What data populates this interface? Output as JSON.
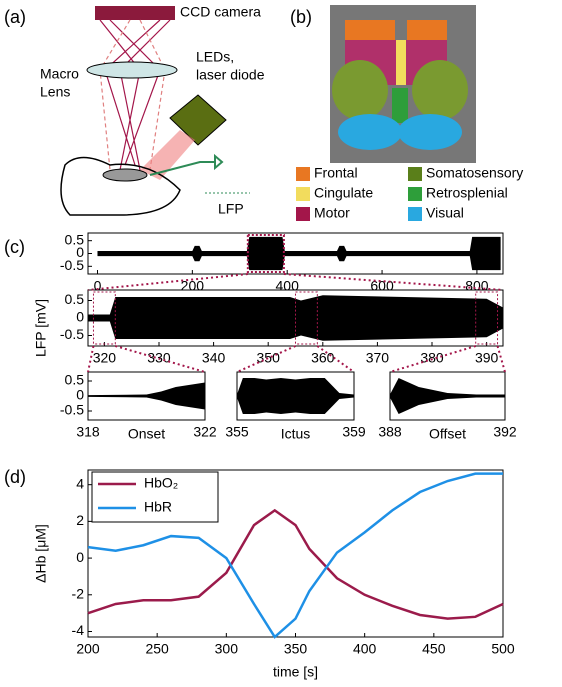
{
  "panel_labels": [
    "(a)",
    "(b)",
    "(c)",
    "(d)"
  ],
  "setup": {
    "camera": "CCD camera",
    "lens": [
      "Macro",
      "Lens"
    ],
    "light": [
      "LEDs,",
      "laser diode"
    ],
    "probe": "LFP"
  },
  "regions": [
    {
      "name": "Frontal",
      "color": "#e87722"
    },
    {
      "name": "Somatosensory",
      "color": "#5a7f1a"
    },
    {
      "name": "Cingulate",
      "color": "#f2dc5d"
    },
    {
      "name": "Retrosplenial",
      "color": "#2e9e3a"
    },
    {
      "name": "Motor",
      "color": "#a3164a"
    },
    {
      "name": "Visual",
      "color": "#29a8e0"
    }
  ],
  "chart_data": [
    {
      "type": "area",
      "color": "#000000",
      "xlim": [
        -20,
        855
      ],
      "xticks": [
        0,
        200,
        400,
        600,
        800
      ],
      "ylim": [
        -0.8,
        0.8
      ],
      "yticks": [
        0.5,
        0,
        -0.5
      ],
      "x": [
        0,
        200,
        205,
        215,
        220,
        315,
        320,
        390,
        395,
        505,
        510,
        520,
        525,
        785,
        790,
        850
      ],
      "values": [
        0.1,
        0.1,
        0.3,
        0.3,
        0.1,
        0.1,
        0.65,
        0.65,
        0.1,
        0.1,
        0.3,
        0.3,
        0.1,
        0.1,
        0.65,
        0.65
      ]
    },
    {
      "type": "area",
      "color": "#000000",
      "ylabel": "LFP [mV]",
      "xlim": [
        317,
        393
      ],
      "xticks": [
        320,
        330,
        340,
        350,
        360,
        370,
        380,
        390
      ],
      "ylim": [
        -0.8,
        0.8
      ],
      "yticks": [
        0.5,
        0,
        -0.5
      ],
      "x": [
        317,
        321,
        322,
        354,
        356,
        360,
        390,
        393
      ],
      "values": [
        0.1,
        0.1,
        0.6,
        0.6,
        0.5,
        0.65,
        0.55,
        0.3
      ]
    },
    {
      "type": "area",
      "color": "#000000",
      "caption": "Onset",
      "xlim": [
        318,
        322
      ],
      "xticks": [
        318,
        322
      ],
      "ylim": [
        -0.8,
        0.8
      ],
      "yticks": [
        0.5,
        0,
        -0.5
      ],
      "x": [
        318,
        320,
        320.5,
        321,
        322
      ],
      "values": [
        0.03,
        0.05,
        0.15,
        0.3,
        0.45
      ]
    },
    {
      "type": "area",
      "color": "#000000",
      "caption": "Ictus",
      "xlim": [
        355,
        359
      ],
      "xticks": [
        355,
        359
      ],
      "ylim": [
        -0.8,
        0.8
      ],
      "yticks": [],
      "x": [
        355,
        355.2,
        355.6,
        356,
        356.5,
        357,
        357.5,
        358,
        358.5,
        359
      ],
      "values": [
        0.05,
        0.6,
        0.6,
        0.55,
        0.6,
        0.55,
        0.6,
        0.6,
        0.1,
        0.05
      ]
    },
    {
      "type": "area",
      "color": "#000000",
      "caption": "Offset",
      "xlim": [
        388,
        392
      ],
      "xticks": [
        388,
        392
      ],
      "ylim": [
        -0.8,
        0.8
      ],
      "yticks": [],
      "x": [
        388,
        388.3,
        389,
        390,
        391,
        392
      ],
      "values": [
        0.05,
        0.6,
        0.3,
        0.1,
        0.05,
        0.05
      ]
    },
    {
      "type": "line",
      "xlabel": "time [s]",
      "ylabel": "ΔHb [μM]",
      "legend": "upper left",
      "xlim": [
        200,
        500
      ],
      "xticks": [
        200,
        250,
        300,
        350,
        400,
        450,
        500
      ],
      "ylim": [
        -4.3,
        4.8
      ],
      "yticks": [
        -4,
        -2,
        0,
        2,
        4
      ],
      "x": [
        200,
        220,
        240,
        260,
        280,
        300,
        320,
        335,
        350,
        360,
        380,
        400,
        420,
        440,
        460,
        480,
        500
      ],
      "series": [
        {
          "name": "HbO₂",
          "color": "#9b1b4b",
          "values": [
            -3.0,
            -2.5,
            -2.3,
            -2.3,
            -2.1,
            -0.8,
            1.8,
            2.6,
            1.8,
            0.5,
            -1.1,
            -2.0,
            -2.6,
            -3.1,
            -3.3,
            -3.2,
            -2.5
          ]
        },
        {
          "name": "HbR",
          "color": "#1e90e6",
          "values": [
            0.6,
            0.4,
            0.7,
            1.2,
            1.1,
            0,
            -2.5,
            -4.3,
            -3.3,
            -1.8,
            0.3,
            1.4,
            2.6,
            3.6,
            4.2,
            4.6,
            4.6
          ]
        }
      ]
    }
  ]
}
